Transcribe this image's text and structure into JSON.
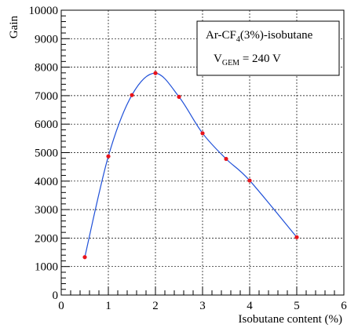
{
  "chart_data": {
    "type": "scatter",
    "xlabel": "Isobutane content (%)",
    "ylabel": "Gain",
    "xlim": [
      0,
      6
    ],
    "ylim": [
      0,
      10000
    ],
    "x_ticks": [
      "0",
      "1",
      "2",
      "3",
      "4",
      "5",
      "6"
    ],
    "y_ticks": [
      "0",
      "1000",
      "2000",
      "3000",
      "4000",
      "5000",
      "6000",
      "7000",
      "8000",
      "9000",
      "10000"
    ],
    "grid": true,
    "legend": {
      "position": "top-right",
      "line1": {
        "a": "Ar-CF",
        "sub": "4",
        "b": "(3%)-isobutane"
      },
      "line2": {
        "a": "V",
        "sub": "GEM",
        "b": " = 240 V"
      }
    },
    "series": [
      {
        "marker_color": "#e8141c",
        "line_color": "#1f50d8",
        "x": [
          0.5,
          1.0,
          1.5,
          2.0,
          2.5,
          3.0,
          3.5,
          4.0,
          5.0
        ],
        "y": [
          1330,
          4870,
          7020,
          7790,
          6960,
          5680,
          4780,
          4020,
          2030
        ]
      }
    ]
  }
}
